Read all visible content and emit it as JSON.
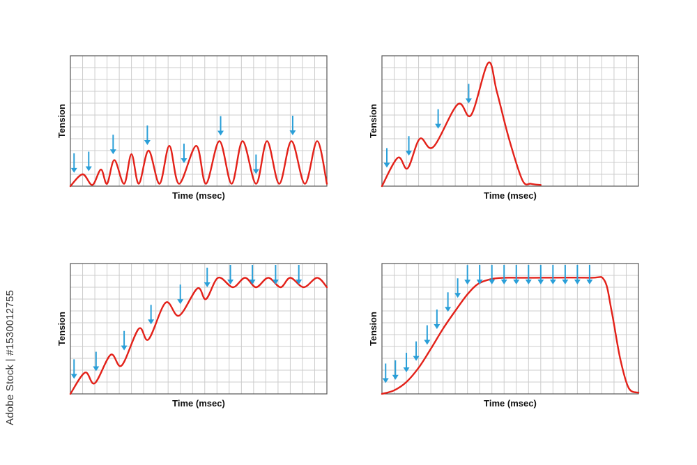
{
  "watermark": "Adobe Stock | #1530012755",
  "colors": {
    "curve": "#e32119",
    "arrow": "#2a9fd8",
    "grid": "#cccccc",
    "frame": "#555555"
  },
  "chart_data": [
    {
      "type": "line",
      "xlabel": "Time (msec)",
      "ylabel": "Tension",
      "grid": true,
      "x_divisions": 21,
      "y_divisions": 11,
      "xlim": [
        0,
        21
      ],
      "ylim": [
        0,
        11
      ],
      "series": [
        {
          "x": [
            0,
            1,
            1.8,
            2.5,
            3,
            3.6,
            4.4,
            5,
            5.6,
            6.4,
            7.3,
            8.1,
            8.9,
            10.3,
            11.1,
            12.2,
            13.2,
            14.1,
            15.2,
            16.1,
            17.1,
            18.1,
            19.2,
            20.2,
            21
          ],
          "y": [
            0,
            1,
            0.1,
            1.4,
            0.2,
            2.2,
            0.2,
            2.7,
            0.2,
            3.0,
            0.2,
            3.4,
            0.2,
            3.4,
            0.2,
            3.8,
            0.2,
            3.8,
            0.2,
            3.8,
            0.2,
            3.8,
            0.2,
            3.8,
            0.2
          ]
        }
      ],
      "stimuli_x": [
        0.3,
        1.5,
        3.5,
        6.3,
        9.3,
        12.3,
        15.2,
        18.2
      ]
    },
    {
      "type": "line",
      "xlabel": "Time (msec)",
      "ylabel": "Tension",
      "grid": true,
      "x_divisions": 21,
      "y_divisions": 11,
      "xlim": [
        0,
        21
      ],
      "ylim": [
        0,
        11
      ],
      "series": [
        {
          "x": [
            0,
            1.3,
            2.1,
            3.1,
            4.2,
            6.2,
            7.3,
            8.7,
            9.4,
            10.4,
            11.5,
            12.2,
            13.0
          ],
          "y": [
            0,
            2.4,
            1.5,
            4.0,
            3.3,
            6.9,
            6.0,
            10.4,
            8.0,
            4.0,
            0.5,
            0.2,
            0.1
          ]
        }
      ],
      "stimuli_x": [
        0.4,
        2.2,
        4.6,
        7.1
      ]
    },
    {
      "type": "line",
      "xlabel": "Time (msec)",
      "ylabel": "Tension",
      "grid": true,
      "x_divisions": 21,
      "y_divisions": 11,
      "xlim": [
        0,
        21
      ],
      "ylim": [
        0,
        11
      ],
      "series": [
        {
          "x": [
            0,
            1.2,
            2.0,
            3.3,
            4.2,
            5.6,
            6.4,
            7.8,
            8.9,
            10.4,
            11.1,
            12.1,
            13.3,
            14.3,
            15.2,
            16.2,
            17.2,
            18.0,
            19.1,
            20.2,
            21.0
          ],
          "y": [
            0,
            1.8,
            0.9,
            3.3,
            2.4,
            5.5,
            4.6,
            7.7,
            6.6,
            8.9,
            8.0,
            9.8,
            9.0,
            9.8,
            9.0,
            9.8,
            9.0,
            9.8,
            9.0,
            9.8,
            9.0
          ]
        }
      ],
      "stimuli_x": [
        0.3,
        2.1,
        4.4,
        6.6,
        9.0,
        11.2,
        13.1,
        14.9,
        16.8,
        18.7
      ]
    },
    {
      "type": "line",
      "xlabel": "Time (msec)",
      "ylabel": "Tension",
      "grid": true,
      "x_divisions": 21,
      "y_divisions": 11,
      "xlim": [
        0,
        21
      ],
      "ylim": [
        0,
        11
      ],
      "series": [
        {
          "x": [
            0,
            1.0,
            2.0,
            3.0,
            4.0,
            5.0,
            6.0,
            7.0,
            7.9,
            9.0,
            10.0,
            11.0,
            12.0,
            17.0,
            18.2,
            18.8,
            19.5,
            20.2,
            21.0
          ],
          "y": [
            0,
            0.3,
            1.0,
            2.2,
            3.8,
            5.5,
            7.0,
            8.4,
            9.3,
            9.7,
            9.8,
            9.8,
            9.8,
            9.8,
            9.6,
            7.0,
            3.0,
            0.5,
            0.1
          ]
        }
      ],
      "stimuli_x": [
        0.3,
        1.1,
        2.0,
        2.8,
        3.7,
        4.5,
        5.4,
        6.2,
        7.0,
        8.0,
        9.0,
        10.0,
        11.0,
        12.0,
        13.0,
        14.0,
        15.0,
        16.0,
        17.0
      ]
    }
  ]
}
